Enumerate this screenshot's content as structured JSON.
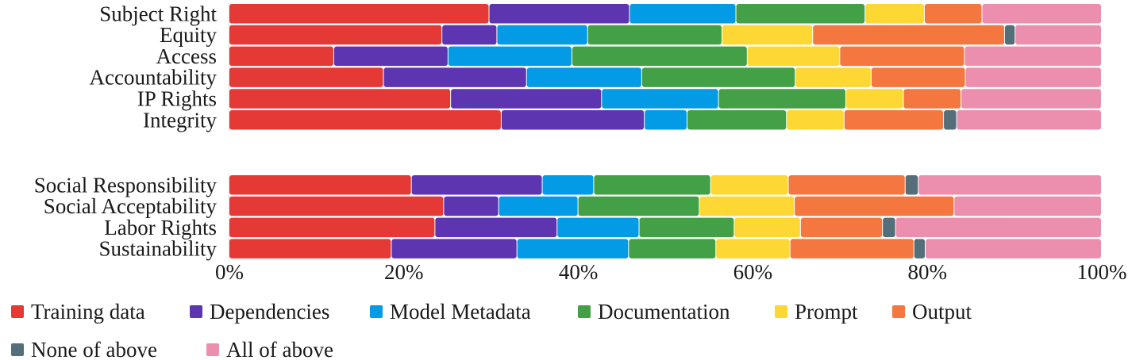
{
  "chart_data": {
    "type": "bar",
    "orientation": "horizontal",
    "stacked": "percent",
    "xlim": [
      0,
      100
    ],
    "xticks": [
      "0%",
      "20%",
      "40%",
      "60%",
      "80%",
      "100%"
    ],
    "grid": false,
    "legend_position": "bottom",
    "series": [
      {
        "name": "Training data",
        "color": "#e53935"
      },
      {
        "name": "Dependencies",
        "color": "#5e35b1"
      },
      {
        "name": "Model Metadata",
        "color": "#039be5"
      },
      {
        "name": "Documentation",
        "color": "#43a047"
      },
      {
        "name": "Prompt",
        "color": "#fdd835"
      },
      {
        "name": "Output",
        "color": "#f4773f"
      },
      {
        "name": "None of above",
        "color": "#546e7a"
      },
      {
        "name": "All of above",
        "color": "#ec8fae"
      }
    ],
    "groups": [
      {
        "categories": [
          "Subject Right",
          "Equity",
          "Access",
          "Accountability",
          "IP Rights",
          "Integrity"
        ],
        "values": [
          [
            29.8,
            16.1,
            12.2,
            14.8,
            6.8,
            6.6,
            0.0,
            13.7
          ],
          [
            24.4,
            6.3,
            10.4,
            15.4,
            10.4,
            22.0,
            1.2,
            9.9
          ],
          [
            12.0,
            13.1,
            14.2,
            20.1,
            10.6,
            14.3,
            0.0,
            15.7
          ],
          [
            17.7,
            16.4,
            13.2,
            17.6,
            8.7,
            10.8,
            0.0,
            15.6
          ],
          [
            25.4,
            17.3,
            13.4,
            14.6,
            6.6,
            6.6,
            0.0,
            16.1
          ],
          [
            31.2,
            16.4,
            4.9,
            11.4,
            6.6,
            11.4,
            1.5,
            16.6
          ]
        ]
      },
      {
        "categories": [
          "Social Responsibility",
          "Social Acceptability",
          "Labor Rights",
          "Sustainability"
        ],
        "values": [
          [
            20.9,
            15.0,
            5.9,
            13.4,
            8.9,
            13.4,
            1.5,
            21.0
          ],
          [
            24.6,
            6.3,
            9.1,
            13.9,
            10.9,
            18.3,
            0.0,
            16.9
          ],
          [
            23.6,
            14.0,
            9.4,
            10.9,
            7.6,
            9.4,
            1.5,
            23.6
          ],
          [
            18.6,
            14.4,
            12.8,
            10.0,
            8.5,
            14.2,
            1.3,
            20.2
          ]
        ]
      }
    ]
  }
}
